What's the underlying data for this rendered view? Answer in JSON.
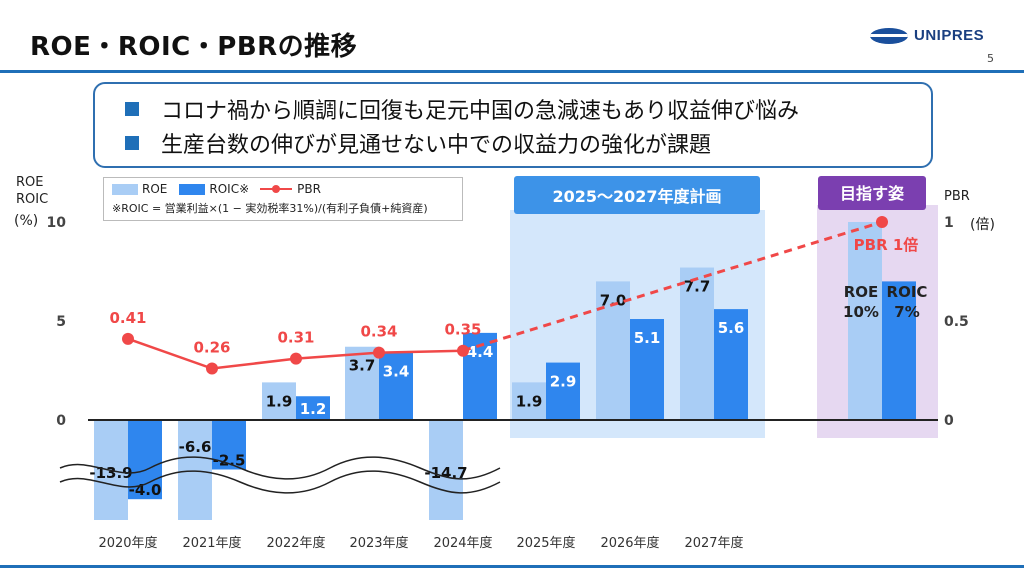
{
  "header": {
    "title": "ROE・ROIC・PBRの推移",
    "logo_text": "UNIPRES",
    "page_number": "5"
  },
  "callout": {
    "bullets": [
      "コロナ禍から順調に回復も足元中国の急減速もあり収益伸び悩み",
      "生産台数の伸びが見通せない中での収益力の強化が課題"
    ]
  },
  "legend": {
    "roe": "ROE",
    "roic": "ROIC※",
    "pbr": "PBR",
    "note": "※ROIC = 営業利益×(1 − 実効税率31%)/(有利子負債+純資産)"
  },
  "colors": {
    "roe": "#a9cdf5",
    "roic": "#2f86ee",
    "pbr": "#f04848",
    "plan_bg": "#d4e7fb",
    "plan_header": "#3d93e8",
    "target_bg": "#e6d8f1",
    "target_header": "#7b3fb0",
    "rule": "#1f6fb8"
  },
  "chart_data": {
    "type": "bar",
    "categories": [
      "2020年度",
      "2021年度",
      "2022年度",
      "2023年度",
      "2024年度",
      "2025年度",
      "2026年度",
      "2027年度",
      ""
    ],
    "series": [
      {
        "name": "ROE",
        "values": [
          -13.9,
          -6.6,
          1.9,
          3.7,
          -14.7,
          1.9,
          7.0,
          7.7,
          10
        ],
        "labels": [
          "-13.9",
          "-6.6",
          "1.9",
          "3.7",
          "-14.7",
          "1.9",
          "7.0",
          "7.7",
          "ROE\n10%"
        ]
      },
      {
        "name": "ROIC",
        "values": [
          -4.0,
          -2.5,
          1.2,
          3.4,
          4.4,
          2.9,
          5.1,
          5.6,
          7
        ],
        "labels": [
          "-4.0",
          "-2.5",
          "1.2",
          "3.4",
          "4.4",
          "2.9",
          "5.1",
          "5.6",
          "ROIC\n7%"
        ]
      },
      {
        "name": "PBR",
        "type": "line",
        "axis": "right",
        "values": [
          0.41,
          0.26,
          0.31,
          0.34,
          0.35,
          null,
          null,
          null,
          1.0
        ],
        "labels": [
          "0.41",
          "0.26",
          "0.31",
          "0.34",
          "0.35",
          "",
          "",
          "",
          "PBR 1倍"
        ],
        "dashed_from_index": 4
      }
    ],
    "left_axis": {
      "label_lines": [
        "ROE",
        "ROIC",
        "(%)"
      ],
      "ticks": [
        "10",
        "5",
        "0"
      ],
      "ylim": [
        -15,
        10
      ]
    },
    "right_axis": {
      "label": "PBR",
      "unit": "(倍)",
      "ticks": [
        "1",
        "0.5",
        "0"
      ],
      "ylim": [
        -0.75,
        1.0
      ]
    },
    "plan_region": {
      "label": "2025〜2027年度計画"
    },
    "target_region": {
      "label": "目指す姿"
    }
  }
}
